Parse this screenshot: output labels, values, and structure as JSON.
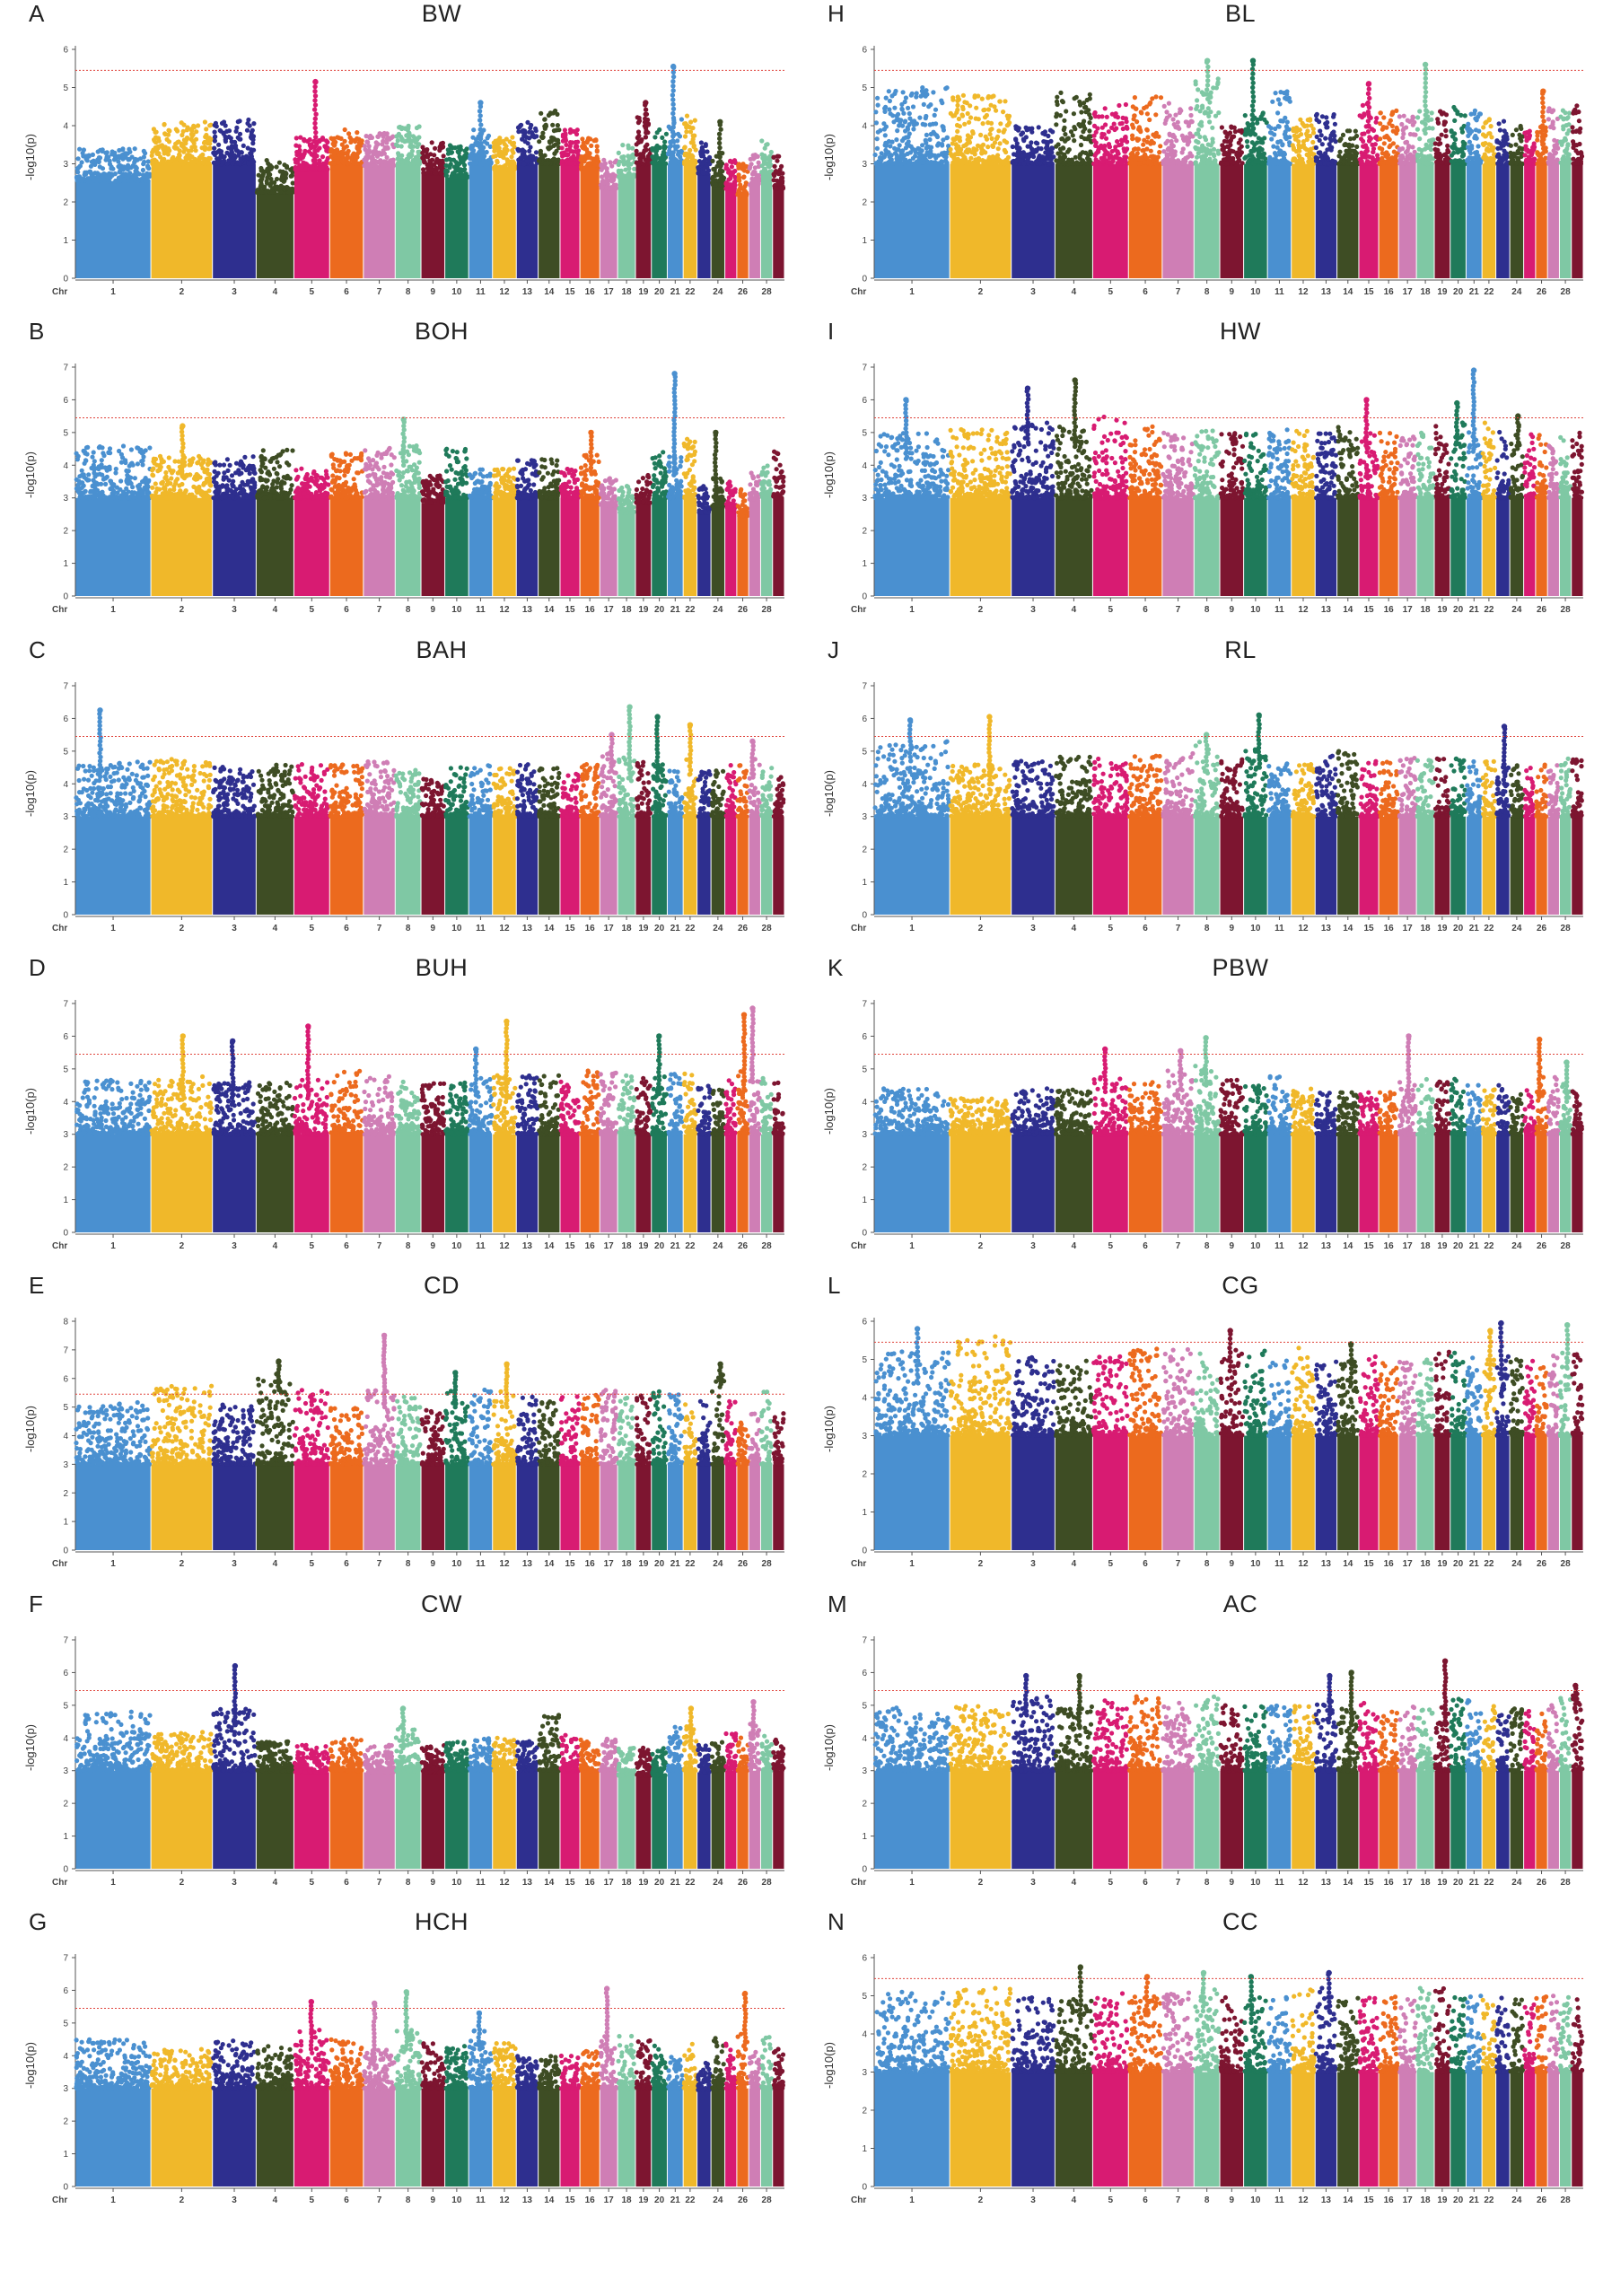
{
  "chart_data": [
    {
      "type": "scatter",
      "panel": "A",
      "title": "BW",
      "ymax": 6,
      "threshold": 5.45,
      "ylabel": "-log10(p)",
      "xlabel": "Chr",
      "base": [
        3.4,
        4.1,
        4.2,
        3.1,
        3.7,
        3.9,
        3.8,
        4.0,
        3.6,
        3.5,
        3.9,
        3.7,
        4.1,
        4.4,
        3.9,
        3.7,
        3.2,
        3.5,
        4.3,
        3.9,
        4.2,
        4.3,
        3.6,
        3.3,
        3.2,
        3.0,
        3.3,
        3.6,
        3.2
      ],
      "peaks": [
        [
          5,
          5.15
        ],
        [
          11,
          4.6
        ],
        [
          21,
          5.55
        ],
        [
          19,
          4.6
        ],
        [
          24,
          4.1
        ]
      ]
    },
    {
      "type": "scatter",
      "panel": "B",
      "title": "BOH",
      "ymax": 7,
      "threshold": 5.45,
      "ylabel": "-log10(p)",
      "xlabel": "Chr",
      "base": [
        4.6,
        4.3,
        4.3,
        4.5,
        3.9,
        4.4,
        4.6,
        4.6,
        3.7,
        4.5,
        3.9,
        3.9,
        4.2,
        4.2,
        3.9,
        4.4,
        3.6,
        3.4,
        3.7,
        4.5,
        4.3,
        4.8,
        3.4,
        3.6,
        3.5,
        3.3,
        3.8,
        4.0,
        4.5
      ],
      "peaks": [
        [
          2,
          5.2
        ],
        [
          8,
          5.4
        ],
        [
          16,
          5.0
        ],
        [
          21,
          6.8
        ],
        [
          24,
          5.0
        ]
      ]
    },
    {
      "type": "scatter",
      "panel": "C",
      "title": "BAH",
      "ymax": 7,
      "threshold": 5.45,
      "ylabel": "-log10(p)",
      "xlabel": "Chr",
      "base": [
        4.7,
        4.8,
        4.6,
        4.6,
        4.6,
        4.6,
        4.7,
        4.6,
        4.2,
        4.5,
        4.6,
        4.5,
        4.6,
        4.5,
        4.4,
        4.6,
        5.0,
        4.8,
        4.7,
        4.7,
        4.6,
        4.9,
        4.5,
        4.4,
        4.6,
        4.6,
        4.8,
        4.5,
        4.2
      ],
      "peaks": [
        [
          1,
          6.25
        ],
        [
          17,
          5.5
        ],
        [
          18,
          6.35
        ],
        [
          20,
          6.05
        ],
        [
          22,
          5.8
        ],
        [
          27,
          5.3
        ]
      ]
    },
    {
      "type": "scatter",
      "panel": "D",
      "title": "BUH",
      "ymax": 7,
      "threshold": 5.45,
      "ylabel": "-log10(p)",
      "xlabel": "Chr",
      "base": [
        4.7,
        4.8,
        4.6,
        4.6,
        4.7,
        5.0,
        4.8,
        4.6,
        4.6,
        4.6,
        4.8,
        4.8,
        4.8,
        4.8,
        4.7,
        5.0,
        4.9,
        4.8,
        4.8,
        4.9,
        4.9,
        4.9,
        4.7,
        4.7,
        4.8,
        5.0,
        5.2,
        4.8,
        4.6
      ],
      "peaks": [
        [
          2,
          6.0
        ],
        [
          3,
          5.85
        ],
        [
          5,
          6.3
        ],
        [
          11,
          5.6
        ],
        [
          12,
          6.45
        ],
        [
          20,
          6.0
        ],
        [
          26,
          6.65
        ],
        [
          27,
          6.85
        ]
      ]
    },
    {
      "type": "scatter",
      "panel": "E",
      "title": "CD",
      "ymax": 8,
      "threshold": 5.45,
      "ylabel": "-log10(p)",
      "xlabel": "Chr",
      "base": [
        5.2,
        5.8,
        5.2,
        6.2,
        5.6,
        5.0,
        5.6,
        5.4,
        5.0,
        5.6,
        5.6,
        5.6,
        5.4,
        5.2,
        5.4,
        5.6,
        5.6,
        5.4,
        5.4,
        5.6,
        5.6,
        5.4,
        5.4,
        6.4,
        5.2,
        4.6,
        4.8,
        5.6,
        4.8
      ],
      "peaks": [
        [
          7,
          7.5
        ],
        [
          12,
          6.5
        ],
        [
          24,
          6.5
        ],
        [
          4,
          6.6
        ],
        [
          10,
          6.2
        ]
      ]
    },
    {
      "type": "scatter",
      "panel": "F",
      "title": "CW",
      "ymax": 7,
      "threshold": 5.45,
      "ylabel": "-log10(p)",
      "xlabel": "Chr",
      "base": [
        4.8,
        4.2,
        5.0,
        3.9,
        3.8,
        4.0,
        3.8,
        4.4,
        3.8,
        3.9,
        4.0,
        4.0,
        3.9,
        4.7,
        4.1,
        4.0,
        4.0,
        3.7,
        3.7,
        3.7,
        4.4,
        4.4,
        3.8,
        4.0,
        4.4,
        4.1,
        4.6,
        4.1,
        4.0
      ],
      "peaks": [
        [
          3,
          6.2
        ],
        [
          8,
          4.9
        ],
        [
          22,
          4.9
        ],
        [
          27,
          5.1
        ]
      ]
    },
    {
      "type": "scatter",
      "panel": "G",
      "title": "HCH",
      "ymax": 7,
      "threshold": 5.45,
      "ylabel": "-log10(p)",
      "xlabel": "Chr",
      "base": [
        4.5,
        4.2,
        4.5,
        4.3,
        4.8,
        4.5,
        4.2,
        4.8,
        4.4,
        4.3,
        4.8,
        4.4,
        4.0,
        4.0,
        4.0,
        4.2,
        4.6,
        4.6,
        4.5,
        4.3,
        4.0,
        4.4,
        3.8,
        4.6,
        4.4,
        4.8,
        4.2,
        4.6,
        4.2
      ],
      "peaks": [
        [
          5,
          5.65
        ],
        [
          7,
          5.6
        ],
        [
          8,
          5.95
        ],
        [
          11,
          5.3
        ],
        [
          17,
          6.05
        ],
        [
          26,
          5.9
        ]
      ]
    },
    {
      "type": "scatter",
      "panel": "H",
      "title": "BL",
      "ymax": 6,
      "threshold": 5.45,
      "ylabel": "-log10(p)",
      "xlabel": "Chr",
      "base": [
        5.0,
        4.8,
        4.0,
        4.9,
        4.6,
        4.8,
        4.6,
        5.3,
        4.0,
        4.4,
        4.9,
        4.2,
        4.3,
        3.9,
        4.6,
        4.4,
        4.3,
        4.4,
        4.4,
        4.6,
        4.4,
        4.2,
        4.2,
        4.0,
        4.0,
        4.0,
        4.5,
        4.4,
        4.6
      ],
      "peaks": [
        [
          8,
          5.7
        ],
        [
          10,
          5.7
        ],
        [
          15,
          5.1
        ],
        [
          18,
          5.6
        ],
        [
          26,
          4.9
        ]
      ]
    },
    {
      "type": "scatter",
      "panel": "I",
      "title": "HW",
      "ymax": 7,
      "threshold": 5.45,
      "ylabel": "-log10(p)",
      "xlabel": "Chr",
      "base": [
        5.0,
        5.1,
        5.3,
        5.3,
        5.5,
        5.2,
        5.0,
        5.1,
        5.0,
        5.0,
        5.1,
        5.1,
        5.0,
        5.2,
        5.0,
        5.0,
        5.0,
        5.0,
        5.2,
        5.3,
        5.1,
        5.3,
        5.1,
        5.3,
        5.0,
        5.0,
        4.7,
        4.9,
        5.0
      ],
      "peaks": [
        [
          1,
          6.0
        ],
        [
          3,
          6.35
        ],
        [
          4,
          6.6
        ],
        [
          15,
          6.0
        ],
        [
          20,
          5.9
        ],
        [
          21,
          6.9
        ],
        [
          24,
          5.5
        ]
      ]
    },
    {
      "type": "scatter",
      "panel": "J",
      "title": "RL",
      "ymax": 7,
      "threshold": 5.45,
      "ylabel": "-log10(p)",
      "xlabel": "Chr",
      "base": [
        5.3,
        4.6,
        4.7,
        4.9,
        4.8,
        4.9,
        5.0,
        5.3,
        4.8,
        5.1,
        4.7,
        4.6,
        4.9,
        5.0,
        4.7,
        4.7,
        4.8,
        4.8,
        4.8,
        4.8,
        4.8,
        4.8,
        4.6,
        4.6,
        4.6,
        4.6,
        4.7,
        4.9,
        4.8
      ],
      "peaks": [
        [
          1,
          5.95
        ],
        [
          2,
          6.05
        ],
        [
          10,
          6.1
        ],
        [
          23,
          5.75
        ],
        [
          8,
          5.5
        ]
      ]
    },
    {
      "type": "scatter",
      "panel": "K",
      "title": "PBW",
      "ymax": 7,
      "threshold": 5.45,
      "ylabel": "-log10(p)",
      "xlabel": "Chr",
      "base": [
        4.4,
        4.1,
        4.4,
        4.4,
        4.9,
        4.6,
        5.0,
        5.1,
        4.7,
        4.5,
        4.8,
        4.4,
        4.3,
        4.3,
        4.3,
        4.3,
        4.6,
        4.7,
        4.7,
        4.7,
        4.5,
        4.4,
        4.5,
        4.4,
        4.4,
        4.8,
        4.8,
        4.6,
        4.4
      ],
      "peaks": [
        [
          5,
          5.6
        ],
        [
          7,
          5.55
        ],
        [
          8,
          5.95
        ],
        [
          17,
          6.0
        ],
        [
          26,
          5.9
        ],
        [
          28,
          5.2
        ]
      ]
    },
    {
      "type": "scatter",
      "panel": "L",
      "title": "CG",
      "ymax": 6,
      "threshold": 5.45,
      "ylabel": "-log10(p)",
      "xlabel": "Chr",
      "base": [
        5.2,
        5.6,
        5.1,
        5.0,
        5.2,
        5.3,
        5.3,
        5.2,
        5.3,
        5.3,
        5.0,
        5.3,
        5.0,
        5.0,
        5.1,
        4.9,
        5.0,
        5.0,
        5.2,
        5.2,
        5.1,
        5.1,
        5.1,
        5.0,
        5.0,
        5.0,
        5.2,
        5.4,
        5.2
      ],
      "peaks": [
        [
          1,
          5.8
        ],
        [
          9,
          5.75
        ],
        [
          22,
          5.75
        ],
        [
          23,
          5.95
        ],
        [
          28,
          5.9
        ],
        [
          14,
          5.4
        ]
      ]
    },
    {
      "type": "scatter",
      "panel": "M",
      "title": "AC",
      "ymax": 7,
      "threshold": 5.45,
      "ylabel": "-log10(p)",
      "xlabel": "Chr",
      "base": [
        5.0,
        5.0,
        5.3,
        5.0,
        5.2,
        5.4,
        5.1,
        5.3,
        5.0,
        5.0,
        5.0,
        5.0,
        5.2,
        5.0,
        5.1,
        4.8,
        5.0,
        4.9,
        5.0,
        5.2,
        5.2,
        5.0,
        4.9,
        4.9,
        4.9,
        4.8,
        5.0,
        5.3,
        5.4
      ],
      "peaks": [
        [
          3,
          5.9
        ],
        [
          4,
          5.9
        ],
        [
          13,
          5.9
        ],
        [
          14,
          6.0
        ],
        [
          19,
          6.35
        ],
        [
          29,
          5.6
        ]
      ]
    },
    {
      "type": "scatter",
      "panel": "N",
      "title": "CC",
      "ymax": 6,
      "threshold": 5.45,
      "ylabel": "-log10(p)",
      "xlabel": "Chr",
      "base": [
        5.1,
        5.2,
        5.0,
        5.0,
        5.1,
        5.1,
        5.1,
        5.2,
        5.0,
        5.0,
        5.1,
        5.2,
        5.2,
        5.0,
        5.0,
        5.0,
        5.0,
        5.2,
        5.2,
        5.0,
        5.0,
        5.0,
        5.0,
        5.0,
        5.0,
        5.0,
        5.0,
        5.0,
        5.0
      ],
      "peaks": [
        [
          4,
          5.75
        ],
        [
          6,
          5.5
        ],
        [
          8,
          5.6
        ],
        [
          13,
          5.6
        ],
        [
          10,
          5.5
        ]
      ]
    }
  ],
  "xtick_labels": [
    "1",
    "2",
    "3",
    "4",
    "5",
    "6",
    "7",
    "8",
    "9",
    "10",
    "11",
    "12",
    "13",
    "14",
    "15",
    "16",
    "17",
    "18",
    "19",
    "20",
    "21",
    "22",
    "24",
    "26",
    "28"
  ],
  "xtick_positions": [
    1,
    2,
    3,
    4,
    5,
    6,
    7,
    8,
    9,
    10,
    11,
    12,
    13,
    14,
    15,
    16,
    17,
    18,
    19,
    20,
    21,
    22,
    24,
    26,
    28
  ],
  "chr_colors": [
    "#4a90d0",
    "#f0b82a",
    "#2e2f8f",
    "#3e4d24",
    "#d81b72",
    "#ec6a1e",
    "#cf7eb5",
    "#7fc8a4",
    "#7d1530",
    "#1f7a5a",
    "#4a90d0",
    "#f0b82a",
    "#2e2f8f",
    "#3e4d24",
    "#d81b72",
    "#ec6a1e",
    "#cf7eb5",
    "#7fc8a4",
    "#7d1530",
    "#1f7a5a",
    "#4a90d0",
    "#f0b82a",
    "#2e2f8f",
    "#3e4d24",
    "#d81b72",
    "#ec6a1e",
    "#cf7eb5",
    "#7fc8a4",
    "#7d1530"
  ],
  "threshold_color": "#e0443c"
}
